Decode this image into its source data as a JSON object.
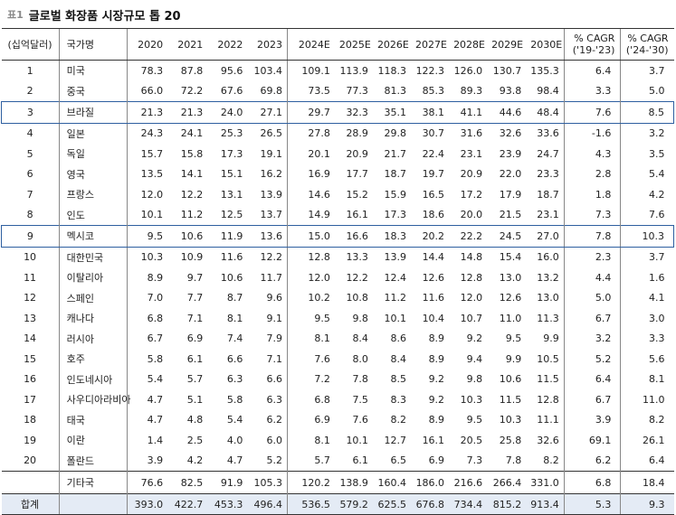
{
  "title": {
    "tag": "표1",
    "text": "글로벌 화장품 시장규모 톱 20"
  },
  "header": {
    "rank": "(십억달러)",
    "country": "국가명",
    "years": [
      "2020",
      "2021",
      "2022",
      "2023",
      "2024E",
      "2025E",
      "2026E",
      "2027E",
      "2028E",
      "2029E",
      "2030E"
    ],
    "cagr1_l1": "% CAGR",
    "cagr1_l2": "('19-'23)",
    "cagr2_l1": "% CAGR",
    "cagr2_l2": "('24-'30)"
  },
  "rows": [
    {
      "rank": "1",
      "country": "미국",
      "v": [
        "78.3",
        "87.8",
        "95.6",
        "103.4",
        "109.1",
        "113.9",
        "118.3",
        "122.3",
        "126.0",
        "130.7",
        "135.3"
      ],
      "c1": "6.4",
      "c2": "3.7"
    },
    {
      "rank": "2",
      "country": "중국",
      "v": [
        "66.0",
        "72.2",
        "67.6",
        "69.8",
        "73.5",
        "77.3",
        "81.3",
        "85.3",
        "89.3",
        "93.8",
        "98.4"
      ],
      "c1": "3.3",
      "c2": "5.0"
    },
    {
      "rank": "3",
      "country": "브라질",
      "v": [
        "21.3",
        "21.3",
        "24.0",
        "27.1",
        "29.7",
        "32.3",
        "35.1",
        "38.1",
        "41.1",
        "44.6",
        "48.4"
      ],
      "c1": "7.6",
      "c2": "8.5"
    },
    {
      "rank": "4",
      "country": "일본",
      "v": [
        "24.3",
        "24.1",
        "25.3",
        "26.5",
        "27.8",
        "28.9",
        "29.8",
        "30.7",
        "31.6",
        "32.6",
        "33.6"
      ],
      "c1": "-1.6",
      "c2": "3.2"
    },
    {
      "rank": "5",
      "country": "독일",
      "v": [
        "15.7",
        "15.8",
        "17.3",
        "19.1",
        "20.1",
        "20.9",
        "21.7",
        "22.4",
        "23.1",
        "23.9",
        "24.7"
      ],
      "c1": "4.3",
      "c2": "3.5"
    },
    {
      "rank": "6",
      "country": "영국",
      "v": [
        "13.5",
        "14.1",
        "15.1",
        "16.2",
        "16.9",
        "17.7",
        "18.7",
        "19.7",
        "20.9",
        "22.0",
        "23.3"
      ],
      "c1": "2.8",
      "c2": "5.4"
    },
    {
      "rank": "7",
      "country": "프랑스",
      "v": [
        "12.0",
        "12.2",
        "13.1",
        "13.9",
        "14.6",
        "15.2",
        "15.9",
        "16.5",
        "17.2",
        "17.9",
        "18.7"
      ],
      "c1": "1.8",
      "c2": "4.2"
    },
    {
      "rank": "8",
      "country": "인도",
      "v": [
        "10.1",
        "11.2",
        "12.5",
        "13.7",
        "14.9",
        "16.1",
        "17.3",
        "18.6",
        "20.0",
        "21.5",
        "23.1"
      ],
      "c1": "7.3",
      "c2": "7.6"
    },
    {
      "rank": "9",
      "country": "멕시코",
      "v": [
        "9.5",
        "10.6",
        "11.9",
        "13.6",
        "15.0",
        "16.6",
        "18.3",
        "20.2",
        "22.2",
        "24.5",
        "27.0"
      ],
      "c1": "7.8",
      "c2": "10.3"
    },
    {
      "rank": "10",
      "country": "대한민국",
      "v": [
        "10.3",
        "10.9",
        "11.6",
        "12.2",
        "12.8",
        "13.3",
        "13.9",
        "14.4",
        "14.8",
        "15.4",
        "16.0"
      ],
      "c1": "2.3",
      "c2": "3.7"
    },
    {
      "rank": "11",
      "country": "이탈리아",
      "v": [
        "8.9",
        "9.7",
        "10.6",
        "11.7",
        "12.0",
        "12.2",
        "12.4",
        "12.6",
        "12.8",
        "13.0",
        "13.2"
      ],
      "c1": "4.4",
      "c2": "1.6"
    },
    {
      "rank": "12",
      "country": "스페인",
      "v": [
        "7.0",
        "7.7",
        "8.7",
        "9.6",
        "10.2",
        "10.8",
        "11.2",
        "11.6",
        "12.0",
        "12.6",
        "13.0"
      ],
      "c1": "5.0",
      "c2": "4.1"
    },
    {
      "rank": "13",
      "country": "캐나다",
      "v": [
        "6.8",
        "7.1",
        "8.1",
        "9.1",
        "9.5",
        "9.8",
        "10.1",
        "10.4",
        "10.7",
        "11.0",
        "11.3"
      ],
      "c1": "6.7",
      "c2": "3.0"
    },
    {
      "rank": "14",
      "country": "러시아",
      "v": [
        "6.7",
        "6.9",
        "7.4",
        "7.9",
        "8.1",
        "8.4",
        "8.6",
        "8.9",
        "9.2",
        "9.5",
        "9.9"
      ],
      "c1": "3.2",
      "c2": "3.3"
    },
    {
      "rank": "15",
      "country": "호주",
      "v": [
        "5.8",
        "6.1",
        "6.6",
        "7.1",
        "7.6",
        "8.0",
        "8.4",
        "8.9",
        "9.4",
        "9.9",
        "10.5"
      ],
      "c1": "5.2",
      "c2": "5.6"
    },
    {
      "rank": "16",
      "country": "인도네시아",
      "v": [
        "5.4",
        "5.7",
        "6.3",
        "6.6",
        "7.2",
        "7.8",
        "8.5",
        "9.2",
        "9.8",
        "10.6",
        "11.5"
      ],
      "c1": "6.4",
      "c2": "8.1"
    },
    {
      "rank": "17",
      "country": "사우디아라비아",
      "v": [
        "4.7",
        "5.1",
        "5.8",
        "6.3",
        "6.8",
        "7.5",
        "8.3",
        "9.2",
        "10.3",
        "11.5",
        "12.8"
      ],
      "c1": "6.7",
      "c2": "11.0"
    },
    {
      "rank": "18",
      "country": "태국",
      "v": [
        "4.7",
        "4.8",
        "5.4",
        "6.2",
        "6.9",
        "7.6",
        "8.2",
        "8.9",
        "9.5",
        "10.3",
        "11.1"
      ],
      "c1": "3.9",
      "c2": "8.2"
    },
    {
      "rank": "19",
      "country": "이란",
      "v": [
        "1.4",
        "2.5",
        "4.0",
        "6.0",
        "8.1",
        "10.1",
        "12.7",
        "16.1",
        "20.5",
        "25.8",
        "32.6"
      ],
      "c1": "69.1",
      "c2": "26.1"
    },
    {
      "rank": "20",
      "country": "폴란드",
      "v": [
        "3.9",
        "4.2",
        "4.7",
        "5.2",
        "5.7",
        "6.1",
        "6.5",
        "6.9",
        "7.3",
        "7.8",
        "8.2"
      ],
      "c1": "6.2",
      "c2": "6.4"
    }
  ],
  "others": {
    "rank": "",
    "country": "기타국",
    "v": [
      "76.6",
      "82.5",
      "91.9",
      "105.3",
      "120.2",
      "138.9",
      "160.4",
      "186.0",
      "216.6",
      "266.4",
      "331.0"
    ],
    "c1": "6.8",
    "c2": "18.4"
  },
  "total": {
    "rank": "합계",
    "country": "",
    "v": [
      "393.0",
      "422.7",
      "453.3",
      "496.4",
      "536.5",
      "579.2",
      "625.5",
      "676.8",
      "734.4",
      "815.2",
      "913.4"
    ],
    "c1": "5.3",
    "c2": "9.3"
  },
  "highlight_color": "#2e5fa0",
  "total_bg": "#e4ebf5"
}
